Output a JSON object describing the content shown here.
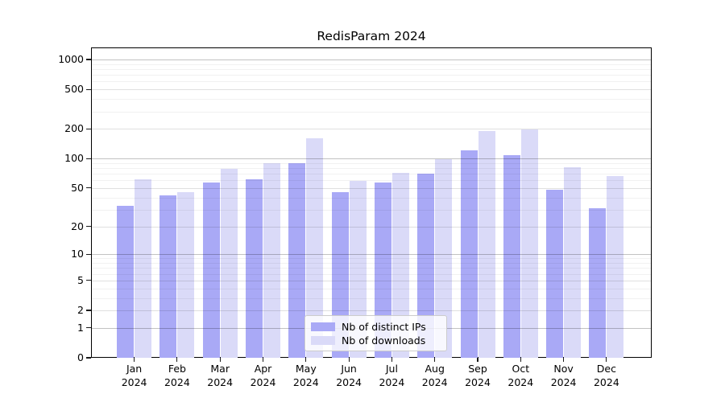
{
  "chart_data": {
    "type": "bar",
    "title": "RedisParam 2024",
    "categories": [
      "Jan\n2024",
      "Feb\n2024",
      "Mar\n2024",
      "Apr\n2024",
      "May\n2024",
      "Jun\n2024",
      "Jul\n2024",
      "Aug\n2024",
      "Sep\n2024",
      "Oct\n2024",
      "Nov\n2024",
      "Dec\n2024"
    ],
    "series": [
      {
        "name": "Nb of distinct IPs",
        "color": "#a9a9f6",
        "values": [
          33,
          42,
          57,
          61,
          89,
          45,
          57,
          70,
          120,
          109,
          48,
          31
        ]
      },
      {
        "name": "Nb of downloads",
        "color": "#dadaf8",
        "values": [
          61,
          45,
          78,
          90,
          161,
          59,
          71,
          98,
          191,
          198,
          81,
          66
        ]
      }
    ],
    "xlabel": "",
    "ylabel": "",
    "yscale": "log1p",
    "y_ticks": [
      0,
      1,
      2,
      5,
      10,
      20,
      50,
      100,
      200,
      500,
      1000
    ],
    "ylim": [
      0,
      1320
    ],
    "grid": true,
    "grid_minor": true,
    "legend_position": "lower center",
    "legend_border_color": "#cccccc",
    "background_color": "#ffffff",
    "text_color": "#000000"
  }
}
